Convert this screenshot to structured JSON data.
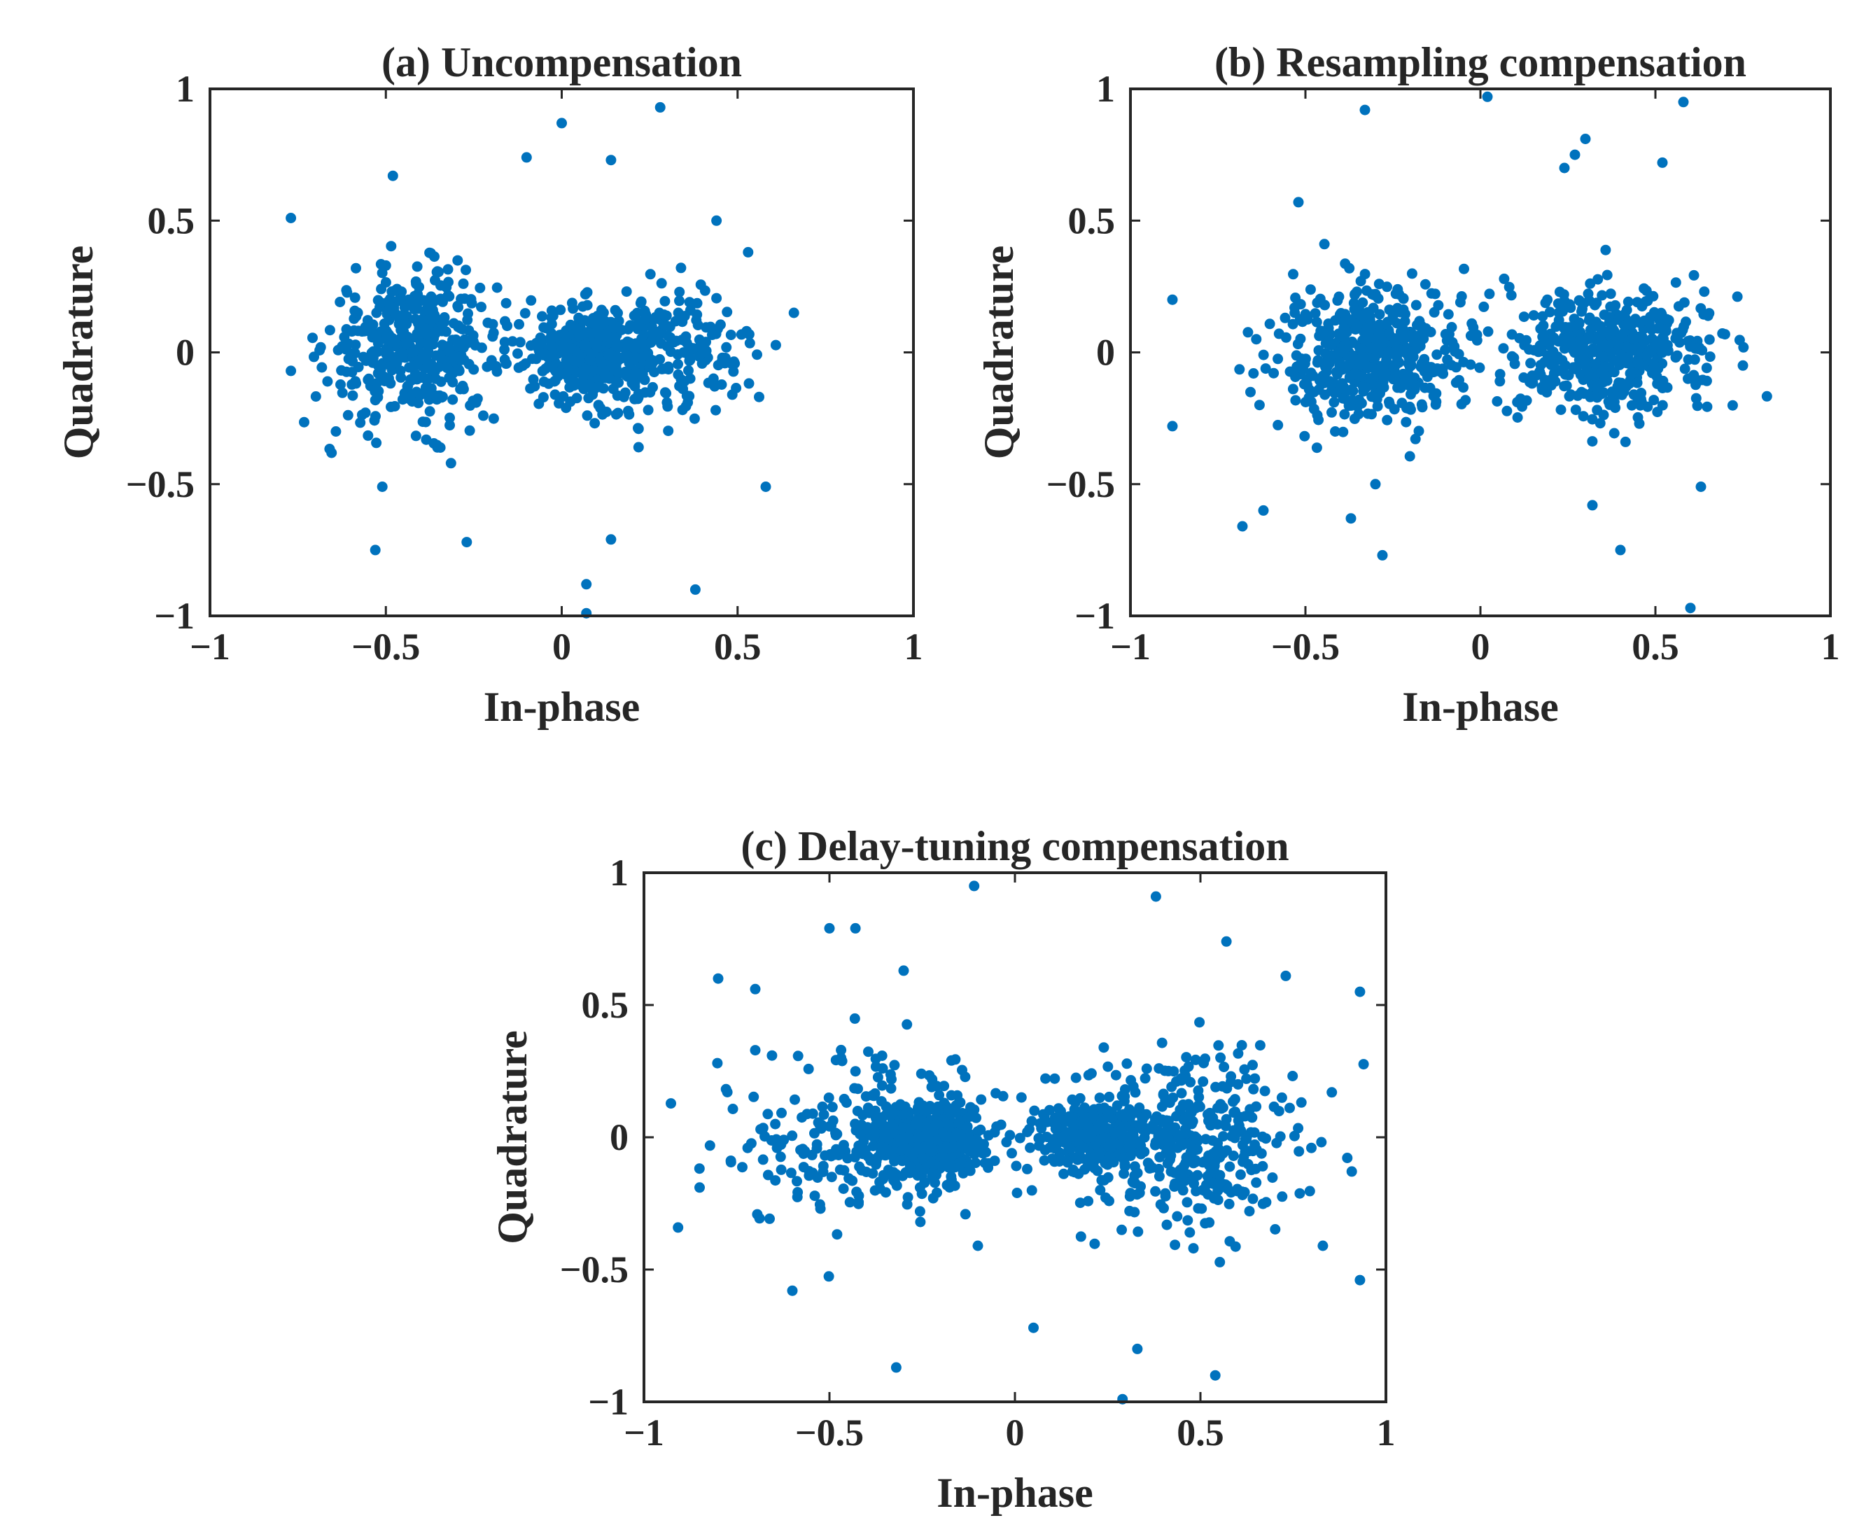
{
  "figure": {
    "point_color": "#0072BD",
    "axis_color": "#262626",
    "background": "#ffffff"
  },
  "chart_data": [
    {
      "type": "scatter",
      "id": "a",
      "title": "(a) Uncompensation",
      "xlabel": "In-phase",
      "ylabel": "Quadrature",
      "xlim": [
        -1,
        1
      ],
      "ylim": [
        -1,
        1
      ],
      "xticks": [
        -1,
        -0.5,
        0,
        0.5,
        1
      ],
      "yticks": [
        -1,
        -0.5,
        0,
        0.5,
        1
      ],
      "xtick_labels": [
        "−1",
        "−0.5",
        "0",
        "0.5",
        "1"
      ],
      "ytick_labels": [
        "−1",
        "−0.5",
        "0",
        "0.5",
        "1"
      ],
      "grid": false,
      "clusters": [
        {
          "cx": -0.42,
          "cy": 0.02,
          "sx": 0.12,
          "sy": 0.14,
          "n": 420
        },
        {
          "cx": 0.07,
          "cy": 0.0,
          "sx": 0.09,
          "sy": 0.08,
          "n": 300
        },
        {
          "cx": 0.26,
          "cy": 0.0,
          "sx": 0.14,
          "sy": 0.12,
          "n": 280
        }
      ],
      "outliers": [
        [
          -0.77,
          0.51
        ],
        [
          -0.48,
          0.67
        ],
        [
          -0.1,
          0.74
        ],
        [
          0.0,
          0.87
        ],
        [
          0.14,
          0.73
        ],
        [
          0.28,
          0.93
        ],
        [
          0.44,
          0.5
        ],
        [
          -0.77,
          -0.07
        ],
        [
          -0.53,
          -0.75
        ],
        [
          -0.27,
          -0.72
        ],
        [
          0.14,
          -0.71
        ],
        [
          0.07,
          -0.88
        ],
        [
          0.38,
          -0.9
        ],
        [
          0.07,
          -0.99
        ],
        [
          0.58,
          -0.51
        ],
        [
          0.66,
          0.15
        ],
        [
          -0.51,
          -0.51
        ],
        [
          0.53,
          0.38
        ]
      ]
    },
    {
      "type": "scatter",
      "id": "b",
      "title": "(b) Resampling compensation",
      "xlabel": "In-phase",
      "ylabel": "Quadrature",
      "xlim": [
        -1,
        1
      ],
      "ylim": [
        -1,
        1
      ],
      "xticks": [
        -1,
        -0.5,
        0,
        0.5,
        1
      ],
      "yticks": [
        -1,
        -0.5,
        0,
        0.5,
        1
      ],
      "xtick_labels": [
        "−1",
        "−0.5",
        "0",
        "0.5",
        "1"
      ],
      "ytick_labels": [
        "−1",
        "−0.5",
        "0",
        "0.5",
        "1"
      ],
      "grid": false,
      "clusters": [
        {
          "cx": -0.31,
          "cy": 0.0,
          "sx": 0.13,
          "sy": 0.13,
          "n": 480
        },
        {
          "cx": 0.37,
          "cy": 0.0,
          "sx": 0.14,
          "sy": 0.12,
          "n": 480
        }
      ],
      "outliers": [
        [
          -0.33,
          0.92
        ],
        [
          0.02,
          0.97
        ],
        [
          0.24,
          0.7
        ],
        [
          0.27,
          0.75
        ],
        [
          0.3,
          0.81
        ],
        [
          0.52,
          0.72
        ],
        [
          0.58,
          0.95
        ],
        [
          -0.52,
          0.57
        ],
        [
          -0.88,
          0.2
        ],
        [
          -0.88,
          -0.28
        ],
        [
          -0.68,
          -0.66
        ],
        [
          -0.62,
          -0.6
        ],
        [
          -0.37,
          -0.63
        ],
        [
          -0.28,
          -0.77
        ],
        [
          0.32,
          -0.58
        ],
        [
          0.4,
          -0.75
        ],
        [
          0.6,
          -0.97
        ],
        [
          0.63,
          -0.51
        ],
        [
          0.75,
          -0.05
        ],
        [
          -0.3,
          -0.5
        ]
      ]
    },
    {
      "type": "scatter",
      "id": "c",
      "title": "(c) Delay-tuning compensation",
      "xlabel": "In-phase",
      "ylabel": "Quadrature",
      "xlim": [
        -1,
        1
      ],
      "ylim": [
        -1,
        1
      ],
      "xticks": [
        -1,
        -0.5,
        0,
        0.5,
        1
      ],
      "yticks": [
        -1,
        -0.5,
        0,
        0.5,
        1
      ],
      "xtick_labels": [
        "−1",
        "−0.5",
        "0",
        "0.5",
        "1"
      ],
      "ytick_labels": [
        "−1",
        "−0.5",
        "0",
        "0.5",
        "1"
      ],
      "grid": false,
      "clusters": [
        {
          "cx": -0.22,
          "cy": -0.02,
          "sx": 0.07,
          "sy": 0.08,
          "n": 380
        },
        {
          "cx": -0.4,
          "cy": 0.0,
          "sx": 0.18,
          "sy": 0.16,
          "n": 260
        },
        {
          "cx": 0.22,
          "cy": 0.0,
          "sx": 0.08,
          "sy": 0.07,
          "n": 260
        },
        {
          "cx": 0.45,
          "cy": 0.0,
          "sx": 0.16,
          "sy": 0.17,
          "n": 380
        }
      ],
      "outliers": [
        [
          -0.11,
          0.95
        ],
        [
          0.38,
          0.91
        ],
        [
          -0.5,
          0.79
        ],
        [
          -0.43,
          0.79
        ],
        [
          -0.3,
          0.63
        ],
        [
          0.57,
          0.74
        ],
        [
          0.73,
          0.61
        ],
        [
          0.93,
          0.55
        ],
        [
          -0.8,
          0.6
        ],
        [
          -0.7,
          0.56
        ],
        [
          -0.32,
          -0.87
        ],
        [
          0.05,
          -0.72
        ],
        [
          0.33,
          -0.8
        ],
        [
          0.29,
          -0.99
        ],
        [
          0.54,
          -0.9
        ],
        [
          0.93,
          -0.54
        ],
        [
          -0.6,
          -0.58
        ],
        [
          -0.85,
          -0.19
        ],
        [
          -0.1,
          -0.41
        ],
        [
          0.83,
          -0.41
        ]
      ]
    }
  ]
}
